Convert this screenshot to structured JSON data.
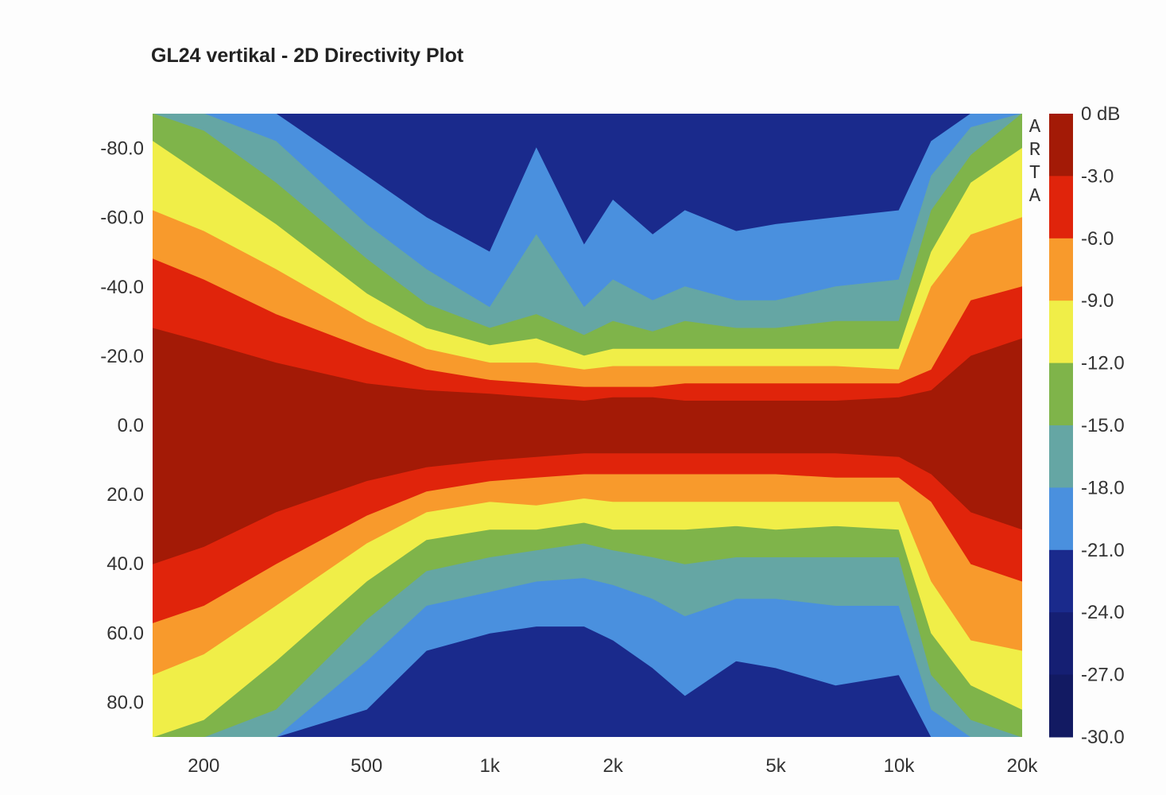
{
  "title": "GL24 vertikal - 2D Directivity Plot",
  "watermark": "ARTA",
  "chart_data": {
    "type": "heatmap",
    "title": "GL24 vertikal - 2D Directivity Plot",
    "xlabel": "",
    "ylabel": "",
    "x_scale": "log",
    "xlim": [
      150,
      20000
    ],
    "ylim": [
      -90,
      90
    ],
    "x_ticks": [
      {
        "value": 200,
        "label": "200"
      },
      {
        "value": 500,
        "label": "500"
      },
      {
        "value": 1000,
        "label": "1k"
      },
      {
        "value": 2000,
        "label": "2k"
      },
      {
        "value": 5000,
        "label": "5k"
      },
      {
        "value": 10000,
        "label": "10k"
      },
      {
        "value": 20000,
        "label": "20k"
      }
    ],
    "y_ticks": [
      {
        "value": -80,
        "label": "-80.0"
      },
      {
        "value": -60,
        "label": "-60.0"
      },
      {
        "value": -40,
        "label": "-40.0"
      },
      {
        "value": -20,
        "label": "-20.0"
      },
      {
        "value": 0,
        "label": "0.0"
      },
      {
        "value": 20,
        "label": "20.0"
      },
      {
        "value": 40,
        "label": "40.0"
      },
      {
        "value": 60,
        "label": "60.0"
      },
      {
        "value": 80,
        "label": "80.0"
      }
    ],
    "colorbar": {
      "levels": [
        0,
        -3,
        -6,
        -9,
        -12,
        -15,
        -18,
        -21,
        -24,
        -27,
        -30
      ],
      "labels": [
        "0 dB",
        "-3.0",
        "-6.0",
        "-9.0",
        "-12.0",
        "-15.0",
        "-18.0",
        "-21.0",
        "-24.0",
        "-27.0",
        "-30.0"
      ],
      "colors": [
        "#a31a06",
        "#e0240b",
        "#f89a2c",
        "#f0ee48",
        "#7fb44a",
        "#65a6a4",
        "#4a90de",
        "#1a2a8c",
        "#151f73",
        "#121a62"
      ]
    },
    "frequencies": [
      150,
      200,
      300,
      500,
      700,
      1000,
      1300,
      1700,
      2000,
      2500,
      3000,
      4000,
      5000,
      7000,
      10000,
      12000,
      15000,
      20000
    ],
    "band_colors": [
      "#a31a06",
      "#e0240b",
      "#f89a2c",
      "#f0ee48",
      "#7fb44a",
      "#65a6a4",
      "#4a90de",
      "#1a2a8c"
    ],
    "contours_upper": [
      [
        -28,
        -24,
        -18,
        -12,
        -10,
        -9,
        -8,
        -7,
        -8,
        -8,
        -7,
        -7,
        -7,
        -7,
        -8,
        -10,
        -20,
        -25
      ],
      [
        -48,
        -42,
        -32,
        -22,
        -16,
        -13,
        -12,
        -11,
        -11,
        -11,
        -12,
        -12,
        -12,
        -12,
        -12,
        -16,
        -36,
        -40
      ],
      [
        -62,
        -56,
        -45,
        -30,
        -22,
        -18,
        -18,
        -16,
        -17,
        -17,
        -17,
        -17,
        -17,
        -17,
        -16,
        -40,
        -55,
        -60
      ],
      [
        -82,
        -72,
        -58,
        -38,
        -28,
        -23,
        -25,
        -20,
        -22,
        -22,
        -22,
        -22,
        -22,
        -22,
        -22,
        -50,
        -70,
        -80
      ],
      [
        -90,
        -85,
        -70,
        -48,
        -35,
        -28,
        -32,
        -26,
        -30,
        -27,
        -30,
        -28,
        -28,
        -30,
        -30,
        -62,
        -78,
        -90
      ],
      [
        -90,
        -90,
        -82,
        -58,
        -45,
        -34,
        -55,
        -34,
        -42,
        -36,
        -40,
        -36,
        -36,
        -40,
        -42,
        -72,
        -86,
        -90
      ],
      [
        -90,
        -90,
        -90,
        -72,
        -60,
        -50,
        -80,
        -52,
        -65,
        -55,
        -62,
        -56,
        -58,
        -60,
        -62,
        -82,
        -90,
        -90
      ]
    ],
    "contours_lower": [
      [
        40,
        35,
        25,
        16,
        12,
        10,
        9,
        8,
        8,
        8,
        8,
        8,
        8,
        8,
        9,
        14,
        25,
        30
      ],
      [
        57,
        52,
        40,
        26,
        19,
        16,
        15,
        14,
        14,
        14,
        14,
        14,
        14,
        15,
        15,
        22,
        40,
        45
      ],
      [
        72,
        66,
        52,
        34,
        25,
        22,
        23,
        21,
        22,
        22,
        22,
        22,
        22,
        22,
        22,
        45,
        62,
        65
      ],
      [
        90,
        85,
        68,
        45,
        33,
        30,
        30,
        28,
        30,
        30,
        30,
        29,
        30,
        29,
        30,
        60,
        75,
        82
      ],
      [
        90,
        90,
        82,
        56,
        42,
        38,
        36,
        34,
        36,
        38,
        40,
        38,
        38,
        38,
        38,
        72,
        85,
        90
      ],
      [
        90,
        90,
        90,
        68,
        52,
        48,
        45,
        44,
        46,
        50,
        55,
        50,
        50,
        52,
        52,
        82,
        90,
        90
      ],
      [
        90,
        90,
        90,
        82,
        65,
        60,
        58,
        58,
        62,
        70,
        78,
        68,
        70,
        75,
        72,
        90,
        90,
        90
      ]
    ]
  }
}
